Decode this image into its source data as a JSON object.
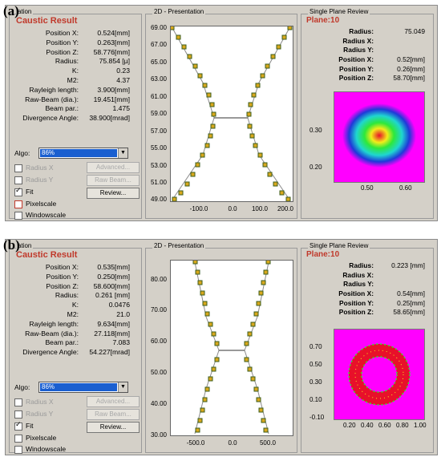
{
  "panels": [
    {
      "label": "(a)",
      "result": {
        "group_title": "ation",
        "title": "Caustic Result",
        "rows": [
          {
            "label": "Position X:",
            "value": "0.524[mm]"
          },
          {
            "label": "Position Y:",
            "value": "0.263[mm]"
          },
          {
            "label": "Position Z:",
            "value": "58.776[mm]"
          },
          {
            "label": "Radius:",
            "value": "75.854 [µ]"
          },
          {
            "label": "K:",
            "value": "0.23"
          },
          {
            "label": "M2:",
            "value": "4.37"
          },
          {
            "label": "Rayleigh length:",
            "value": "3.900[mm]"
          },
          {
            "label": "Raw-Beam (dia.):",
            "value": "19.451[mm]"
          },
          {
            "label": "Beam par.:",
            "value": "1.475"
          },
          {
            "label": "Divergence Angle:",
            "value": "38.900[mrad]"
          }
        ],
        "algo_label": "Algo:",
        "algo_value": "86%",
        "checks": [
          {
            "label": "Radius X",
            "checked": false,
            "disabled": true
          },
          {
            "label": "Radius Y",
            "checked": false,
            "disabled": true
          },
          {
            "label": "Fit",
            "checked": true,
            "disabled": false
          },
          {
            "label": "Pixelscale",
            "checked": false,
            "disabled": false
          },
          {
            "label": "Windowscale",
            "checked": false,
            "disabled": false
          }
        ],
        "buttons": [
          {
            "label": "Advanced...",
            "disabled": true
          },
          {
            "label": "Raw Beam...",
            "disabled": true
          },
          {
            "label": "Review...",
            "disabled": false
          }
        ]
      },
      "presentation": {
        "title": "2D - Presentation",
        "y_ticks": [
          "69.00",
          "67.00",
          "65.00",
          "63.00",
          "61.00",
          "59.00",
          "57.00",
          "55.00",
          "53.00",
          "51.00",
          "49.00"
        ],
        "x_ticks": [
          "-100.0",
          "0.0",
          "100.0",
          "200.0"
        ]
      },
      "review": {
        "title": "Single Plane Review",
        "plane": "Plane:10",
        "rows": [
          {
            "label": "Radius:",
            "value": "75.049"
          },
          {
            "label": "Radius X:",
            "value": ""
          },
          {
            "label": "Radius Y:",
            "value": ""
          },
          {
            "label": "Position X:",
            "value": "0.52[mm]"
          },
          {
            "label": "Position Y:",
            "value": "0.26[mm]"
          },
          {
            "label": "Position Z:",
            "value": "58.70[mm]"
          }
        ],
        "y_ticks": [
          "0.30",
          "0.20"
        ],
        "x_ticks": [
          "0.50",
          "0.60"
        ],
        "colors": {
          "background": "#ff00ff",
          "core": "#e8102a",
          "ring": "#1e3ad8"
        }
      }
    },
    {
      "label": "(b)",
      "result": {
        "group_title": "ation",
        "title": "Caustic Result",
        "rows": [
          {
            "label": "Position X:",
            "value": "0.535[mm]"
          },
          {
            "label": "Position Y:",
            "value": "0.250[mm]"
          },
          {
            "label": "Position Z:",
            "value": "58.600[mm]"
          },
          {
            "label": "Radius:",
            "value": "0.261 [mm]"
          },
          {
            "label": "K:",
            "value": "0.0476"
          },
          {
            "label": "M2:",
            "value": "21.0"
          },
          {
            "label": "Rayleigh length:",
            "value": "9.634[mm]"
          },
          {
            "label": "Raw-Beam (dia.):",
            "value": "27.118[mm]"
          },
          {
            "label": "Beam par.:",
            "value": "7.083"
          },
          {
            "label": "Divergence Angle:",
            "value": "54.227[mrad]"
          }
        ],
        "algo_label": "Algo:",
        "algo_value": "86%",
        "checks": [
          {
            "label": "Radius X",
            "checked": false,
            "disabled": true
          },
          {
            "label": "Radius Y",
            "checked": false,
            "disabled": true
          },
          {
            "label": "Fit",
            "checked": true,
            "disabled": false
          },
          {
            "label": "Pixelscale",
            "checked": false,
            "disabled": false
          },
          {
            "label": "Windowscale",
            "checked": false,
            "disabled": false
          }
        ],
        "buttons": [
          {
            "label": "Advanced...",
            "disabled": true
          },
          {
            "label": "Raw Beam...",
            "disabled": true
          },
          {
            "label": "Review...",
            "disabled": false
          }
        ]
      },
      "presentation": {
        "title": "2D - Presentation",
        "y_ticks": [
          "80.00",
          "70.00",
          "60.00",
          "50.00",
          "40.00",
          "30.00"
        ],
        "x_ticks": [
          "-500.0",
          "0.0",
          "500.0"
        ]
      },
      "review": {
        "title": "Single Plane Review",
        "plane": "Plane:10",
        "rows": [
          {
            "label": "Radius:",
            "value": "0.223 [mm]"
          },
          {
            "label": "Radius X:",
            "value": ""
          },
          {
            "label": "Radius Y:",
            "value": ""
          },
          {
            "label": "Position X:",
            "value": "0.54[mm]"
          },
          {
            "label": "Position Y:",
            "value": "0.25[mm]"
          },
          {
            "label": "Position Z:",
            "value": "58.65[mm]"
          }
        ],
        "y_ticks": [
          "0.70",
          "0.50",
          "0.30",
          "0.10",
          "-0.10"
        ],
        "x_ticks": [
          "0.20",
          "0.40",
          "0.60",
          "0.80",
          "1.00"
        ],
        "colors": {
          "background": "#ff00ff",
          "ring": "#e8102a"
        }
      }
    }
  ]
}
